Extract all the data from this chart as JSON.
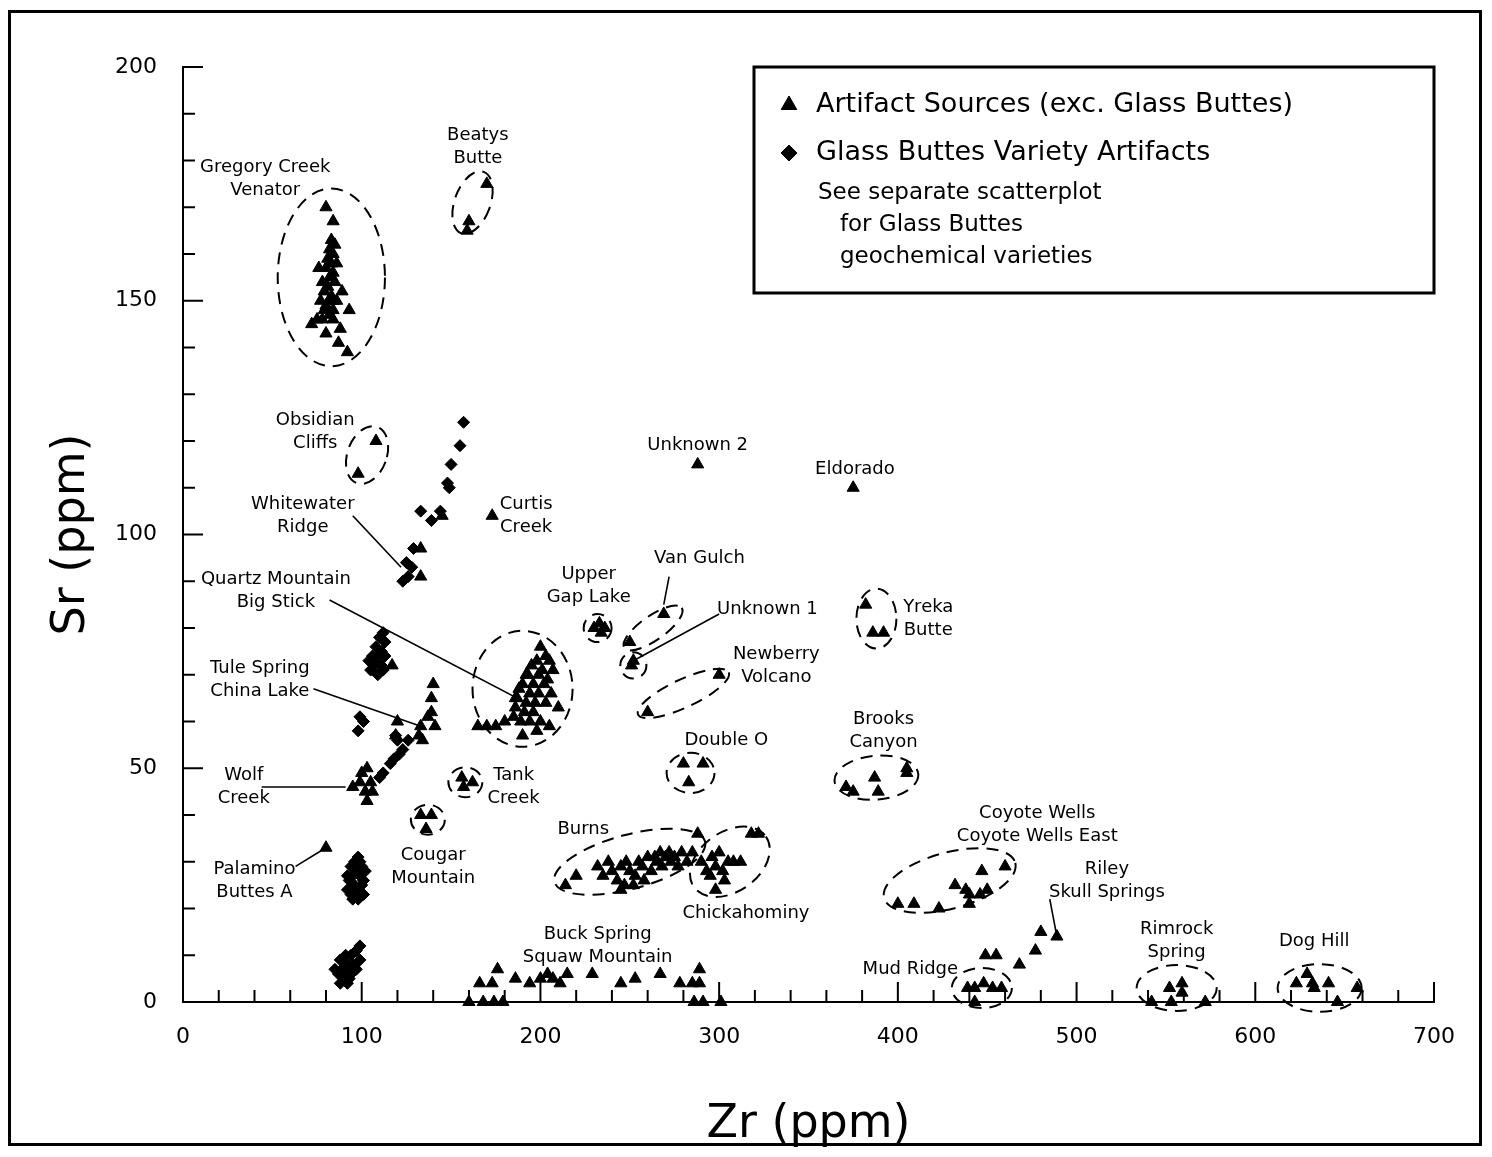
{
  "chart_data": {
    "type": "scatter",
    "xlabel": "Zr (ppm)",
    "ylabel": "Sr (ppm)",
    "xlim": [
      0,
      700
    ],
    "ylim": [
      0,
      200
    ],
    "xticks": [
      0,
      {
        "value": 20,
        "label": null
      },
      {
        "value": 40,
        "label": null
      },
      {
        "value": 60,
        "label": null
      },
      {
        "value": 80,
        "label": null
      },
      100,
      {
        "value": 120,
        "label": null
      },
      {
        "value": 140,
        "label": null
      },
      {
        "value": 160,
        "label": null
      },
      {
        "value": 180,
        "label": null
      },
      200,
      {
        "value": 220,
        "label": null
      },
      {
        "value": 240,
        "label": null
      },
      {
        "value": 260,
        "label": null
      },
      {
        "value": 280,
        "label": null
      },
      300,
      {
        "value": 320,
        "label": null
      },
      {
        "value": 340,
        "label": null
      },
      {
        "value": 360,
        "label": null
      },
      {
        "value": 380,
        "label": null
      },
      400,
      {
        "value": 420,
        "label": null
      },
      {
        "value": 440,
        "label": null
      },
      {
        "value": 460,
        "label": null
      },
      {
        "value": 480,
        "label": null
      },
      500,
      {
        "value": 520,
        "label": null
      },
      {
        "value": 540,
        "label": null
      },
      {
        "value": 560,
        "label": null
      },
      {
        "value": 580,
        "label": null
      },
      600,
      {
        "value": 620,
        "label": null
      },
      {
        "value": 640,
        "label": null
      },
      {
        "value": 660,
        "label": null
      },
      {
        "value": 680,
        "label": null
      },
      700
    ],
    "yticks": [
      0,
      {
        "value": 10,
        "label": null
      },
      {
        "value": 20,
        "label": null
      },
      {
        "value": 30,
        "label": null
      },
      {
        "value": 40,
        "label": null
      },
      50,
      {
        "value": 60,
        "label": null
      },
      {
        "value": 70,
        "label": null
      },
      {
        "value": 80,
        "label": null
      },
      {
        "value": 90,
        "label": null
      },
      100,
      {
        "value": 110,
        "label": null
      },
      {
        "value": 120,
        "label": null
      },
      {
        "value": 130,
        "label": null
      },
      {
        "value": 140,
        "label": null
      },
      150,
      {
        "value": 160,
        "label": null
      },
      {
        "value": 170,
        "label": null
      },
      {
        "value": 180,
        "label": null
      },
      {
        "value": 190,
        "label": null
      },
      200
    ],
    "legend": "top right",
    "series": [
      {
        "name": "Artifact Sources (exc. Glass Buttes)",
        "color": "#000000",
        "marker": "triangle",
        "x": [
          80,
          84,
          83,
          82,
          85,
          84,
          81,
          86,
          83,
          80,
          84,
          76,
          82,
          78,
          85,
          81,
          89,
          79,
          83,
          77,
          82,
          86,
          80,
          84,
          79,
          82,
          75,
          93,
          78,
          84,
          72,
          88,
          80,
          87,
          92,
          84,
          170,
          160,
          159,
          108,
          98,
          173,
          145,
          133,
          133,
          117,
          140,
          139,
          139,
          137,
          141,
          133,
          132,
          134,
          120,
          119,
          95,
          100,
          103,
          99,
          105,
          102,
          106,
          103,
          80,
          133,
          139,
          136,
          156,
          162,
          157,
          200,
          203,
          198,
          205,
          195,
          201,
          207,
          193,
          199,
          204,
          190,
          196,
          202,
          188,
          194,
          199,
          206,
          187,
          192,
          197,
          203,
          186,
          191,
          196,
          210,
          185,
          189,
          194,
          200,
          205,
          170,
          175,
          165,
          180,
          190,
          198,
          186,
          192,
          233,
          236,
          230,
          234,
          269,
          250,
          252,
          251,
          300,
          260,
          280,
          291,
          283,
          288,
          375,
          382,
          386,
          392,
          371,
          375,
          387,
          389,
          405,
          405,
          214,
          220,
          232,
          235,
          238,
          240,
          243,
          245,
          247,
          248,
          250,
          253,
          255,
          257,
          258,
          260,
          262,
          264,
          265,
          267,
          268,
          270,
          272,
          273,
          275,
          277,
          279,
          282,
          285,
          288,
          245,
          252,
          290,
          293,
          296,
          298,
          300,
          302,
          305,
          308,
          312,
          295,
          298,
          303,
          318,
          322,
          400,
          409,
          423,
          432,
          438,
          440,
          440,
          446,
          450,
          447,
          460,
          480,
          489,
          477,
          468,
          449,
          455,
          439,
          443,
          448,
          453,
          458,
          443,
          552,
          559,
          559,
          542,
          553,
          572,
          623,
          629,
          632,
          633,
          641,
          657,
          646,
          166,
          173,
          176,
          186,
          194,
          200,
          204,
          207,
          211,
          215,
          229,
          245,
          253,
          267,
          278,
          289,
          289,
          285,
          286,
          291,
          301,
          160,
          168,
          174,
          179
        ],
        "values": [
          170,
          167,
          163,
          161,
          162,
          160,
          159,
          158,
          158,
          157,
          156,
          157,
          155,
          154,
          154,
          153,
          152,
          152,
          151,
          150,
          150,
          150,
          149,
          148,
          148,
          147,
          146,
          148,
          146,
          146,
          145,
          144,
          143,
          141,
          139,
          150,
          175,
          167,
          165,
          120,
          113,
          104,
          104,
          97,
          91,
          72,
          68,
          65,
          62,
          61,
          59,
          59,
          57,
          56,
          60,
          57,
          46,
          49,
          50,
          47,
          47,
          45,
          45,
          43,
          33,
          40,
          40,
          37,
          48,
          47,
          46,
          76,
          74,
          73,
          73,
          72,
          71,
          71,
          70,
          70,
          69,
          68,
          68,
          68,
          67,
          66,
          66,
          66,
          65,
          64,
          64,
          64,
          63,
          62,
          62,
          63,
          61,
          60,
          60,
          60,
          59,
          59,
          59,
          59,
          60,
          57,
          58,
          65,
          70,
          81,
          80,
          80,
          79,
          83,
          77,
          73,
          72,
          70,
          62,
          51,
          51,
          47,
          115,
          110,
          85,
          79,
          79,
          46,
          45,
          48,
          45,
          49,
          50,
          25,
          27,
          29,
          27,
          30,
          28,
          26,
          29,
          25,
          30,
          28,
          27,
          30,
          29,
          26,
          31,
          28,
          31,
          30,
          32,
          29,
          31,
          32,
          30,
          31,
          29,
          32,
          30,
          32,
          36,
          24,
          25,
          30,
          28,
          31,
          29,
          32,
          28,
          30,
          30,
          30,
          27,
          24,
          26,
          36,
          36,
          21,
          21,
          20,
          25,
          24,
          23,
          21,
          23,
          24,
          28,
          29,
          15,
          14,
          11,
          8,
          10,
          10,
          3,
          3,
          4,
          3,
          3,
          0,
          3,
          4,
          2,
          0,
          0,
          0,
          4,
          6,
          4,
          3,
          4,
          3,
          0,
          4,
          4,
          7,
          5,
          4,
          5,
          6,
          5,
          4,
          6,
          6,
          4,
          5,
          6,
          4,
          7,
          4,
          4,
          0,
          0,
          0,
          0,
          0,
          0,
          0
        ]
      },
      {
        "name": "Glass Buttes Variety Artifacts",
        "color": "#000000",
        "marker": "diamond",
        "x": [
          157,
          155,
          150,
          148,
          149,
          133,
          139,
          144,
          129,
          125,
          128,
          123,
          126,
          112,
          110,
          113,
          108,
          111,
          106,
          109,
          113,
          104,
          107,
          111,
          105,
          109,
          112,
          108,
          99,
          98,
          101,
          119,
          120,
          126,
          123,
          121,
          118,
          116,
          112,
          110,
          98,
          96,
          100,
          94,
          97,
          102,
          92,
          95,
          99,
          101,
          93,
          96,
          100,
          92,
          97,
          101,
          94,
          95,
          98,
          99,
          99,
          97,
          94,
          91,
          99,
          88,
          92,
          95,
          85,
          89,
          97,
          91,
          94,
          87,
          90,
          93,
          88,
          92
        ],
        "values": [
          124,
          119,
          115,
          111,
          110,
          105,
          103,
          105,
          97,
          94,
          93,
          90,
          91,
          79,
          78,
          77,
          76,
          75,
          74,
          74,
          74,
          73,
          72,
          72,
          71,
          70,
          71,
          73,
          61,
          58,
          60,
          57,
          56,
          56,
          54,
          53,
          52,
          51,
          49,
          48,
          31,
          30,
          29,
          29,
          28,
          28,
          27,
          27,
          27,
          26,
          26,
          25,
          25,
          24,
          24,
          23,
          23,
          22,
          22,
          30,
          12,
          11,
          10,
          10,
          9,
          9,
          8,
          8,
          7,
          7,
          7,
          6,
          6,
          6,
          5,
          5,
          4,
          4
        ]
      }
    ],
    "annotations": [
      "See separate scatterplot\n   for Glass Buttes\n   geochemical varieties",
      "Gregory Creek\nVenator",
      "Beatys\nButte",
      "Obsidian\nCliffs",
      {
        "text": "Whitewater\nRidge",
        "x": 122,
        "y": 93
      },
      "Curtis\nCreek",
      "Unknown 2",
      "Eldorado",
      {
        "text": "Quartz Mountain\nBig Stick",
        "x": 187,
        "y": 65
      },
      "Upper\nGap Lake",
      {
        "text": "Van Gulch",
        "x": 269,
        "y": 85
      },
      {
        "text": "Unknown 1",
        "x": 252,
        "y": 73
      },
      "Yreka\nButte",
      "Newberry\nVolcano",
      {
        "text": "Tule Spring\nChina Lake",
        "x": 133,
        "y": 59
      },
      "Double O",
      "Brooks\nCanyon",
      {
        "text": "Wolf\nCreek",
        "x": 91,
        "y": 46
      },
      "Tank\nCreek",
      "Burns",
      "Coyote Wells\nCoyote Wells East",
      {
        "text": "Palamino\nButtes A",
        "x": 80,
        "y": 33
      },
      "Cougar\nMountain",
      {
        "text": "Riley\nSkull Springs",
        "x": 489,
        "y": 14
      },
      "Chickahominy",
      "Buck Spring\nSquaw Mountain",
      "Rimrock\nSpring",
      "Dog Hill",
      "Mud Ridge"
    ]
  }
}
